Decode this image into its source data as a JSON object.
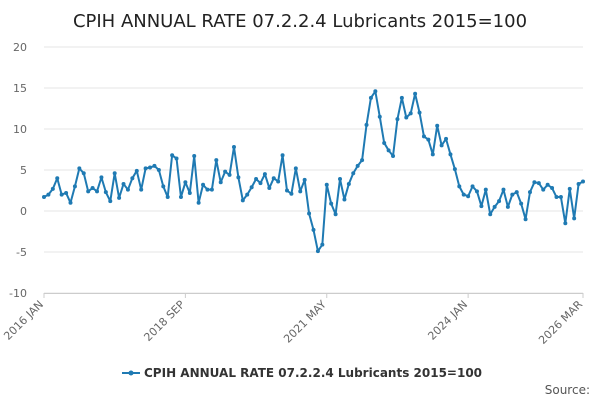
{
  "chart_data": {
    "type": "line",
    "title": "CPIH ANNUAL RATE 07.2.2.4 Lubricants 2015=100",
    "xlabel": "",
    "ylabel": "",
    "ylim": [
      -10,
      20
    ],
    "yticks": [
      20,
      15,
      10,
      5,
      0,
      -5,
      -10
    ],
    "xticks": [
      "2016 JAN",
      "2018 SEP",
      "2021 MAY",
      "2024 JAN",
      "2026 MAR"
    ],
    "x_start": "2016 JAN",
    "x_end": "2026 MAR",
    "grid": true,
    "legend_position": "bottom",
    "color": "#1f7ab3",
    "series": [
      {
        "name": "CPIH ANNUAL RATE 07.2.2.4 Lubricants 2015=100",
        "values": [
          1.7,
          2.0,
          2.7,
          4.0,
          2.0,
          2.2,
          1.0,
          3.0,
          5.2,
          4.6,
          2.4,
          2.8,
          2.4,
          4.1,
          2.3,
          1.2,
          4.6,
          1.6,
          3.3,
          2.6,
          4.0,
          4.9,
          2.6,
          5.2,
          5.3,
          5.5,
          5.0,
          3.0,
          1.7,
          6.8,
          6.4,
          1.7,
          3.5,
          2.2,
          6.7,
          1.0,
          3.2,
          2.6,
          2.6,
          6.2,
          3.5,
          4.8,
          4.4,
          7.8,
          4.1,
          1.3,
          2.0,
          2.9,
          3.9,
          3.4,
          4.5,
          2.8,
          4.0,
          3.6,
          6.8,
          2.5,
          2.1,
          5.2,
          2.4,
          3.8,
          -0.3,
          -2.3,
          -4.9,
          -4.1,
          3.2,
          0.9,
          -0.4,
          3.9,
          1.4,
          3.3,
          4.6,
          5.5,
          6.2,
          10.5,
          13.8,
          14.6,
          11.5,
          8.3,
          7.4,
          6.7,
          11.2,
          13.8,
          11.4,
          11.9,
          14.3,
          12.0,
          9.1,
          8.7,
          6.9,
          10.4,
          8.0,
          8.8,
          6.9,
          5.1,
          3.0,
          2.0,
          1.8,
          3.0,
          2.4,
          0.6,
          2.6,
          -0.4,
          0.5,
          1.2,
          2.6,
          0.5,
          2.0,
          2.3,
          0.9,
          -1.0,
          2.3,
          3.5,
          3.4,
          2.6,
          3.2,
          2.8,
          1.7,
          1.7,
          -1.5,
          2.7,
          -0.9,
          3.3,
          3.6
        ]
      }
    ]
  },
  "legend": {
    "label": "CPIH ANNUAL RATE 07.2.2.4 Lubricants 2015=100"
  },
  "footer": {
    "source_label": "Source:"
  }
}
